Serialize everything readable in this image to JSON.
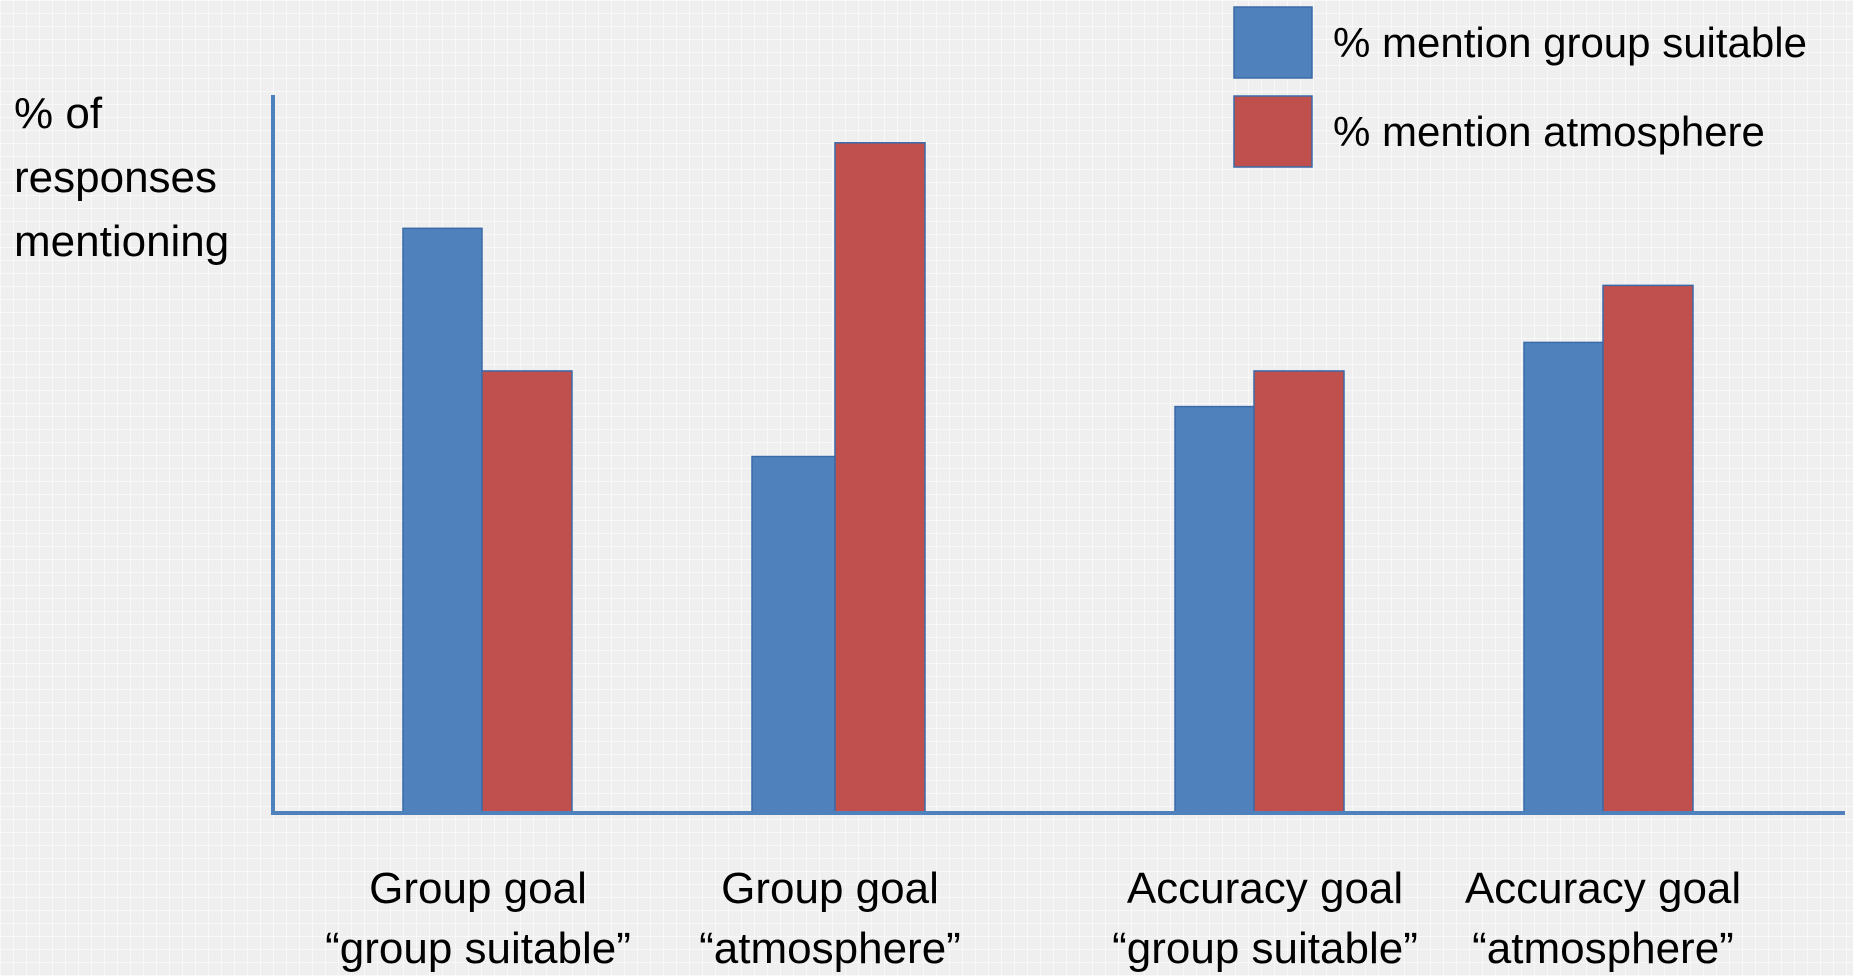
{
  "chart_data": {
    "type": "bar",
    "ylabel": "% of responses mentioning",
    "ylabel_lines": [
      "% of",
      "responses",
      "mentioning"
    ],
    "xlabel": "",
    "categories": [
      "Group goal “group suitable”",
      "Group goal “atmosphere”",
      "Accuracy goal “group suitable”",
      "Accuracy goal “atmosphere”"
    ],
    "category_lines": [
      [
        "Group goal",
        "“group suitable”"
      ],
      [
        "Group goal",
        "“atmosphere”"
      ],
      [
        "Accuracy goal",
        "“group suitable”"
      ],
      [
        "Accuracy goal",
        "“atmosphere”"
      ]
    ],
    "series": [
      {
        "name": "% mention group suitable",
        "color": "#4f81bd",
        "values": [
          82,
          50,
          57,
          66
        ]
      },
      {
        "name": "% mention atmosphere",
        "color": "#c0504d",
        "values": [
          62,
          94,
          62,
          74
        ]
      }
    ],
    "ylim": [
      0,
      100
    ],
    "grid": false,
    "legend_position": "top-right",
    "axis_color": "#4f81bd",
    "background_color": "#efefef"
  }
}
